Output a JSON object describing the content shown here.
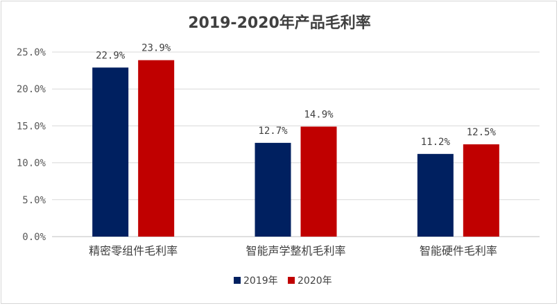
{
  "chart_data": {
    "type": "bar",
    "title": "2019-2020年产品毛利率",
    "categories": [
      "精密零组件毛利率",
      "智能声学整机毛利率",
      "智能硬件毛利率"
    ],
    "series": [
      {
        "name": "2019年",
        "values": [
          22.9,
          12.7,
          11.2
        ],
        "labels": [
          "22.9%",
          "12.7%",
          "11.2%"
        ],
        "color": "#002060"
      },
      {
        "name": "2020年",
        "values": [
          23.9,
          14.9,
          12.5
        ],
        "labels": [
          "23.9%",
          "14.9%",
          "12.5%"
        ],
        "color": "#C00000"
      }
    ],
    "ylim": [
      0,
      25
    ],
    "yticks": [
      0,
      5,
      10,
      15,
      20,
      25
    ],
    "ytick_labels": [
      "0.0%",
      "5.0%",
      "10.0%",
      "15.0%",
      "20.0%",
      "25.0%"
    ],
    "grid": true,
    "legend_position": "bottom"
  }
}
